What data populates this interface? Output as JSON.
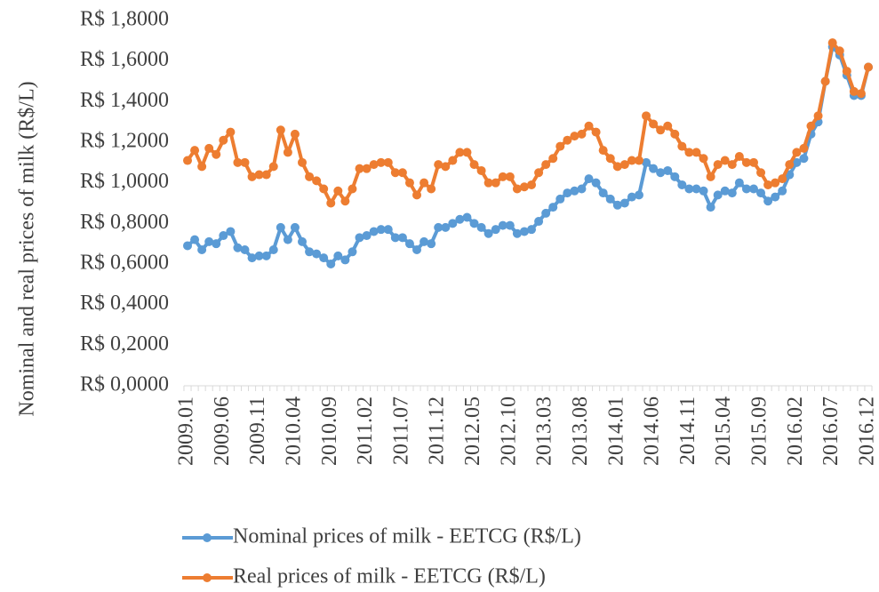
{
  "chart_data": {
    "type": "line",
    "y_label": "Nominal and real prices of milk (R$/L)",
    "categories": [
      "2009.01",
      null,
      null,
      null,
      null,
      "2009.06",
      null,
      null,
      null,
      null,
      "2009.11",
      null,
      null,
      null,
      null,
      "2010.04",
      null,
      null,
      null,
      null,
      "2010.09",
      null,
      null,
      null,
      null,
      "2011.02",
      null,
      null,
      null,
      null,
      "2011.07",
      null,
      null,
      null,
      null,
      "2011.12",
      null,
      null,
      null,
      null,
      "2012.05",
      null,
      null,
      null,
      null,
      "2012.10",
      null,
      null,
      null,
      null,
      "2013.03",
      null,
      null,
      null,
      null,
      "2013.08",
      null,
      null,
      null,
      null,
      "2014.01",
      null,
      null,
      null,
      null,
      "2014.06",
      null,
      null,
      null,
      null,
      "2014.11",
      null,
      null,
      null,
      null,
      "2015.04",
      null,
      null,
      null,
      null,
      "2015.09",
      null,
      null,
      null,
      null,
      "2016.02",
      null,
      null,
      null,
      null,
      "2016.07",
      null,
      null,
      null,
      null,
      "2016.12"
    ],
    "series": [
      {
        "name": "Nominal prices of milk - EETCG (R$/L)",
        "color": "#5b9bd5",
        "values": [
          0.69,
          0.72,
          0.67,
          0.71,
          0.7,
          0.74,
          0.76,
          0.68,
          0.67,
          0.63,
          0.64,
          0.64,
          0.67,
          0.78,
          0.72,
          0.78,
          0.71,
          0.66,
          0.65,
          0.63,
          0.6,
          0.64,
          0.62,
          0.66,
          0.73,
          0.74,
          0.76,
          0.77,
          0.77,
          0.73,
          0.73,
          0.7,
          0.67,
          0.71,
          0.7,
          0.78,
          0.78,
          0.8,
          0.82,
          0.83,
          0.8,
          0.78,
          0.75,
          0.77,
          0.79,
          0.79,
          0.75,
          0.76,
          0.77,
          0.81,
          0.85,
          0.88,
          0.92,
          0.95,
          0.96,
          0.97,
          1.02,
          1.0,
          0.95,
          0.92,
          0.89,
          0.9,
          0.93,
          0.94,
          1.1,
          1.07,
          1.05,
          1.06,
          1.03,
          0.99,
          0.97,
          0.97,
          0.96,
          0.88,
          0.94,
          0.96,
          0.95,
          1.0,
          0.97,
          0.97,
          0.95,
          0.91,
          0.93,
          0.96,
          1.04,
          1.1,
          1.12,
          1.24,
          1.3,
          1.5,
          1.67,
          1.63,
          1.53,
          1.43,
          1.43,
          1.57
        ]
      },
      {
        "name": "Real prices of milk - EETCG (R$/L)",
        "color": "#ed7d31",
        "values": [
          1.11,
          1.16,
          1.08,
          1.17,
          1.14,
          1.21,
          1.25,
          1.1,
          1.1,
          1.03,
          1.04,
          1.04,
          1.08,
          1.26,
          1.15,
          1.24,
          1.1,
          1.03,
          1.01,
          0.97,
          0.9,
          0.96,
          0.91,
          0.97,
          1.07,
          1.07,
          1.09,
          1.1,
          1.1,
          1.05,
          1.05,
          1.0,
          0.94,
          1.0,
          0.97,
          1.09,
          1.08,
          1.11,
          1.15,
          1.15,
          1.09,
          1.06,
          1.0,
          1.0,
          1.03,
          1.03,
          0.97,
          0.98,
          0.99,
          1.05,
          1.09,
          1.12,
          1.18,
          1.21,
          1.23,
          1.24,
          1.28,
          1.25,
          1.16,
          1.12,
          1.08,
          1.09,
          1.11,
          1.11,
          1.33,
          1.29,
          1.26,
          1.28,
          1.24,
          1.18,
          1.15,
          1.15,
          1.12,
          1.03,
          1.09,
          1.11,
          1.09,
          1.13,
          1.1,
          1.1,
          1.05,
          0.99,
          1.0,
          1.02,
          1.09,
          1.15,
          1.17,
          1.28,
          1.33,
          1.5,
          1.69,
          1.65,
          1.55,
          1.45,
          1.44,
          1.57
        ]
      }
    ],
    "ylim": [
      0,
      1.8
    ],
    "yticks": [
      {
        "value": 0,
        "label": "R$ 0,0000"
      },
      {
        "value": 0.2,
        "label": "R$ 0,2000"
      },
      {
        "value": 0.4,
        "label": "R$ 0,4000"
      },
      {
        "value": 0.6,
        "label": "R$ 0,6000"
      },
      {
        "value": 0.8,
        "label": "R$ 0,8000"
      },
      {
        "value": 1.0,
        "label": "R$ 1,0000"
      },
      {
        "value": 1.2,
        "label": "R$ 1,2000"
      },
      {
        "value": 1.4,
        "label": "R$ 1,4000"
      },
      {
        "value": 1.6,
        "label": "R$ 1,6000"
      },
      {
        "value": 1.8,
        "label": "R$ 1,8000"
      }
    ],
    "grid": false
  }
}
